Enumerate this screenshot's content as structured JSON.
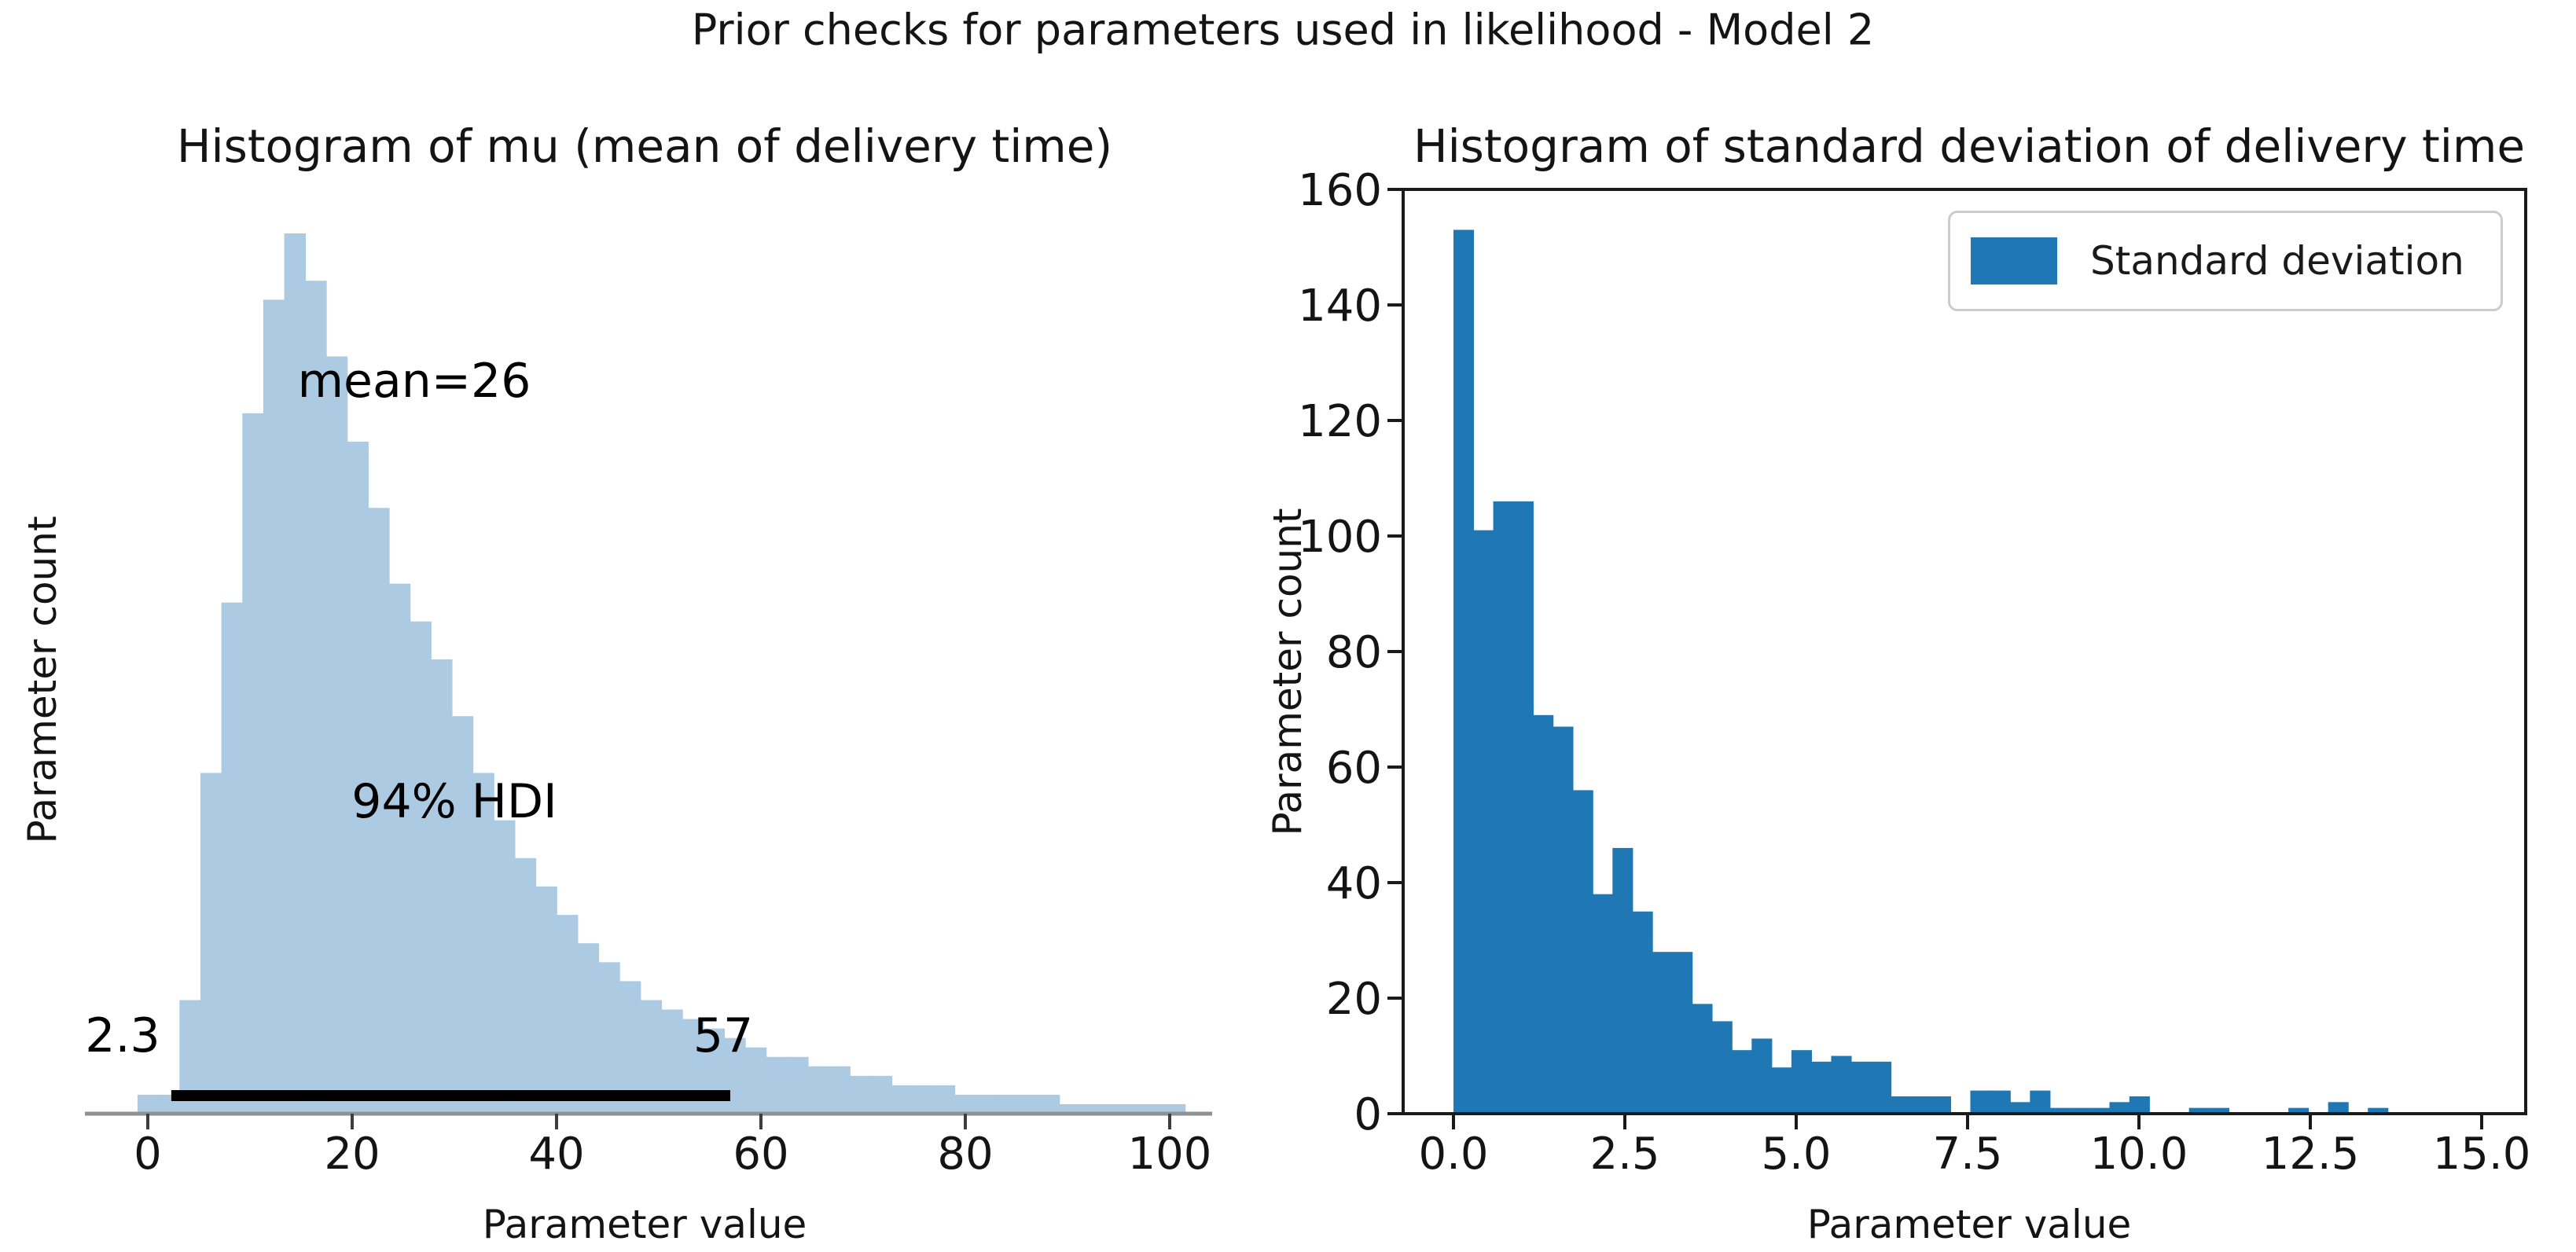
{
  "figure": {
    "suptitle": "Prior checks for parameters used in likelihood - Model 2"
  },
  "colors": {
    "left_bar": "#accbe3",
    "right_bar": "#1f77b4",
    "hdi_line": "#000000",
    "left_spine": "#919191",
    "left_tick": "#3d3d3d",
    "right_frame": "#1a1a1a"
  },
  "chart_data": [
    {
      "type": "bar",
      "subtype": "histogram",
      "title": "Histogram of mu (mean of delivery time)",
      "xlabel": "Parameter value",
      "ylabel": "Parameter count",
      "xticks": [
        0,
        20,
        40,
        60,
        80,
        100
      ],
      "xtick_labels": [
        "0",
        "20",
        "40",
        "60",
        "80",
        "100"
      ],
      "ylim": [
        0,
        97
      ],
      "xlim": [
        -7,
        104
      ],
      "grid": false,
      "yticks_visible": false,
      "bins": {
        "start": -1.0,
        "width": 2.05,
        "counts": [
          2,
          2,
          12,
          36,
          54,
          74,
          86,
          93,
          88,
          80,
          71,
          64,
          56,
          52,
          48,
          42,
          36,
          31,
          27,
          24,
          21,
          18,
          16,
          14,
          12,
          11,
          10,
          9,
          8,
          7,
          6,
          6,
          5,
          5,
          4,
          4,
          3,
          3,
          3,
          2,
          2,
          2,
          2,
          2,
          1,
          1,
          1,
          1,
          1,
          1
        ]
      },
      "annotations": {
        "mean_label": "mean=26",
        "hdi_label": "94% HDI",
        "hdi_low": "2.3",
        "hdi_high": "57"
      },
      "hdi_interval": [
        2.3,
        57
      ]
    },
    {
      "type": "bar",
      "subtype": "histogram",
      "title": "Histogram of standard deviation of delivery time",
      "xlabel": "Parameter value",
      "ylabel": "Parameter count",
      "xticks": [
        0,
        2.5,
        5,
        7.5,
        10,
        12.5,
        15
      ],
      "xtick_labels": [
        "0.0",
        "2.5",
        "5.0",
        "7.5",
        "10.0",
        "12.5",
        "15.0"
      ],
      "yticks": [
        0,
        20,
        40,
        60,
        80,
        100,
        120,
        140,
        160
      ],
      "ytick_labels": [
        "0",
        "20",
        "40",
        "60",
        "80",
        "100",
        "120",
        "140",
        "160"
      ],
      "ylim": [
        0,
        160
      ],
      "xlim": [
        -0.75,
        16.35
      ],
      "grid": false,
      "legend": {
        "label": "Standard deviation",
        "position": "upper right"
      },
      "bins": {
        "start": 0.0,
        "width": 0.29,
        "counts": [
          153,
          101,
          106,
          106,
          69,
          67,
          56,
          38,
          46,
          35,
          28,
          28,
          19,
          16,
          11,
          13,
          8,
          11,
          9,
          10,
          9,
          9,
          3,
          3,
          3,
          0,
          4,
          4,
          2,
          4,
          1,
          1,
          1,
          2,
          3,
          0,
          0,
          1,
          1,
          0,
          0,
          0,
          1,
          0,
          2,
          0,
          1
        ]
      }
    }
  ]
}
